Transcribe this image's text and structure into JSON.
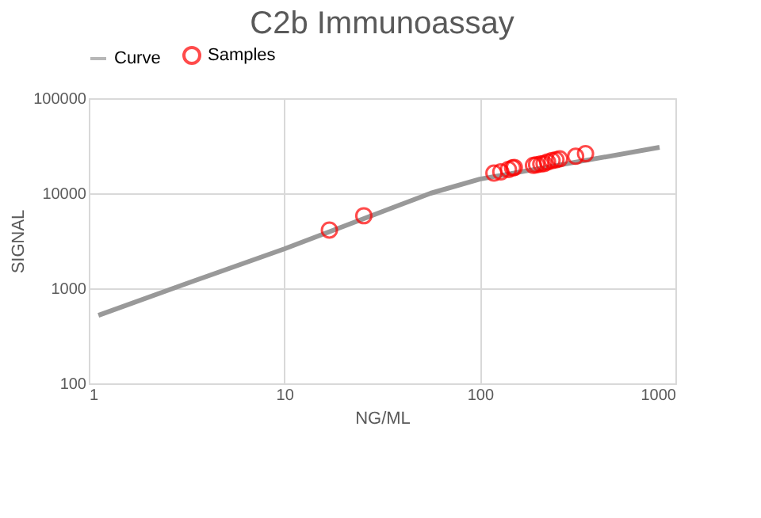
{
  "chart_data": {
    "type": "line",
    "title": "C2b Immunoassay",
    "xlabel": "NG/ML",
    "ylabel": "SIGNAL",
    "log": "xy",
    "xlim": [
      1,
      1000
    ],
    "ylim": [
      100,
      100000
    ],
    "xticks": [
      1,
      10,
      100,
      1000
    ],
    "yticks": [
      100,
      1000,
      10000,
      100000
    ],
    "grid": true,
    "legend": "top",
    "series": [
      {
        "name": "Curve",
        "color": "#999999",
        "x": [
          1.12,
          3,
          10,
          56,
          100,
          830
        ],
        "values": [
          520,
          1080,
          2600,
          10000,
          14100,
          30400
        ]
      },
      {
        "name": "Samples",
        "type": "scatter",
        "marker": "circle",
        "color": "#ff0000",
        "x": [
          17,
          25.5,
          118,
          128,
          140,
          147,
          150,
          188,
          195,
          205,
          213,
          222,
          234,
          245,
          256,
          309,
          347
        ],
        "values": [
          4100,
          5800,
          16300,
          16800,
          17800,
          18500,
          18700,
          19700,
          20000,
          20300,
          20500,
          21300,
          22100,
          22500,
          23000,
          24500,
          26100
        ]
      }
    ]
  }
}
